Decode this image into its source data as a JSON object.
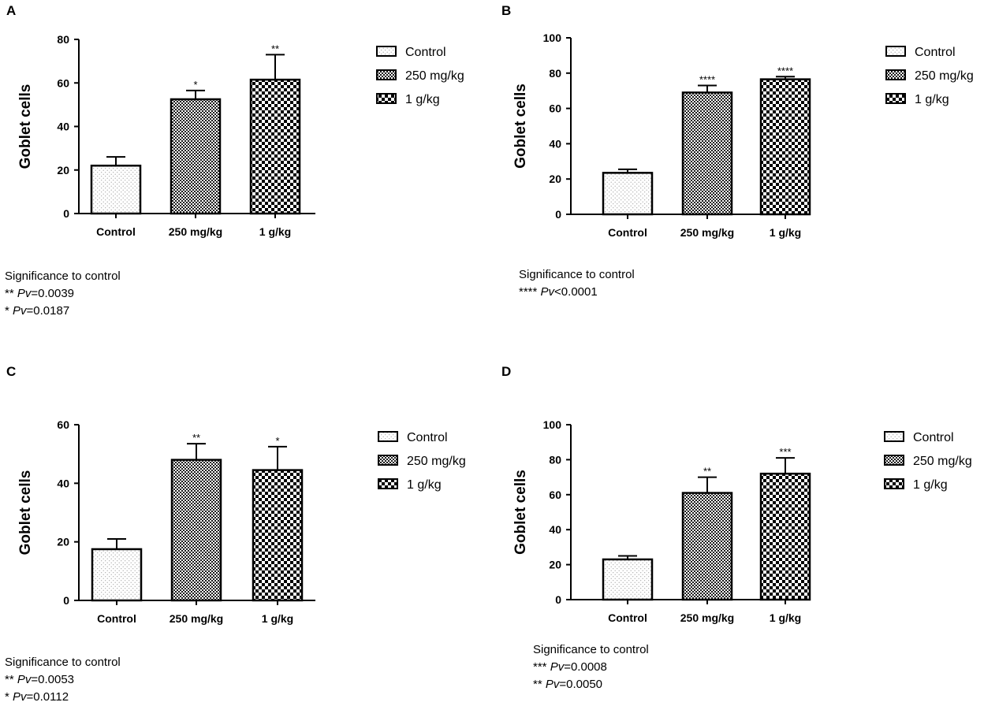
{
  "patterns": {
    "control": "control-pattern",
    "mid": "mid-pattern",
    "high": "high-pattern"
  },
  "chart_data": [
    {
      "panel": "A",
      "type": "bar",
      "ylabel": "Goblet cells",
      "ylim": [
        0,
        80
      ],
      "yticks": [
        0,
        20,
        40,
        60,
        80
      ],
      "categories": [
        "Control",
        "250 mg/kg",
        "1 g/kg"
      ],
      "values": [
        22,
        52.5,
        61.5
      ],
      "errors": [
        4,
        4,
        11.5
      ],
      "stars": [
        "",
        "*",
        "**"
      ],
      "legend": [
        "Control",
        "250 mg/kg",
        "1 g/kg"
      ],
      "significance": {
        "title": "Significance to control",
        "lines": [
          {
            "stars": "**",
            "pv": "Pv",
            "value": "=0.0039"
          },
          {
            "stars": "*",
            "pv": "Pv",
            "value": "=0.0187"
          }
        ]
      }
    },
    {
      "panel": "B",
      "type": "bar",
      "ylabel": "Goblet cells",
      "ylim": [
        0,
        100
      ],
      "yticks": [
        0,
        20,
        40,
        60,
        80,
        100
      ],
      "categories": [
        "Control",
        "250 mg/kg",
        "1 g/kg"
      ],
      "values": [
        23.5,
        69,
        76.5
      ],
      "errors": [
        2,
        4,
        1.5
      ],
      "stars": [
        "",
        "****",
        "****"
      ],
      "legend": [
        "Control",
        "250 mg/kg",
        "1 g/kg"
      ],
      "significance": {
        "title": "Significance to control",
        "lines": [
          {
            "stars": "****",
            "pv": "Pv",
            "value": "<0.0001"
          }
        ]
      }
    },
    {
      "panel": "C",
      "type": "bar",
      "ylabel": "Goblet cells",
      "ylim": [
        0,
        60
      ],
      "yticks": [
        0,
        20,
        40,
        60
      ],
      "categories": [
        "Control",
        "250 mg/kg",
        "1 g/kg"
      ],
      "values": [
        17.5,
        48,
        44.5
      ],
      "errors": [
        3.5,
        5.5,
        8
      ],
      "stars": [
        "",
        "**",
        "*"
      ],
      "legend": [
        "Control",
        "250 mg/kg",
        "1 g/kg"
      ],
      "significance": {
        "title": "Significance to control",
        "lines": [
          {
            "stars": "**",
            "pv": "Pv",
            "value": "=0.0053"
          },
          {
            "stars": "*",
            "pv": "Pv",
            "value": "=0.0112"
          }
        ]
      }
    },
    {
      "panel": "D",
      "type": "bar",
      "ylabel": "Goblet cells",
      "ylim": [
        0,
        100
      ],
      "yticks": [
        0,
        20,
        40,
        60,
        80,
        100
      ],
      "categories": [
        "Control",
        "250 mg/kg",
        "1 g/kg"
      ],
      "values": [
        23,
        61,
        72
      ],
      "errors": [
        2,
        9,
        9
      ],
      "stars": [
        "",
        "**",
        "***"
      ],
      "legend": [
        "Control",
        "250 mg/kg",
        "1 g/kg"
      ],
      "significance": {
        "title": "Significance to control",
        "lines": [
          {
            "stars": "***",
            "pv": "Pv",
            "value": "=0.0008"
          },
          {
            "stars": "**",
            "pv": "Pv",
            "value": "=0.0050"
          }
        ]
      }
    }
  ]
}
